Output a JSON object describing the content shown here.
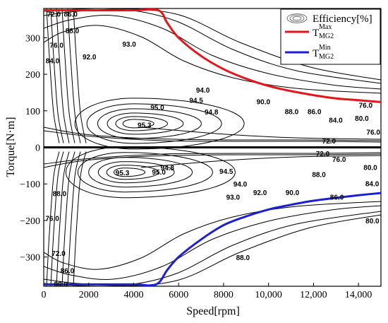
{
  "chart_data": {
    "type": "contour",
    "xlabel": "Speed[rpm]",
    "ylabel": "Torque[N·m]",
    "xlim": [
      0,
      15000
    ],
    "ylim": [
      -380,
      380
    ],
    "x_ticks": [
      0,
      2000,
      4000,
      6000,
      8000,
      10000,
      12000,
      14000
    ],
    "x_tick_labels": [
      "0",
      "2000",
      "4000",
      "6000",
      "8000",
      "10,000",
      "12,000",
      "14,000"
    ],
    "y_ticks": [
      300,
      200,
      100,
      0,
      -100,
      -200,
      -300
    ],
    "y_tick_labels": [
      "300",
      "200",
      "100",
      "0",
      "−100",
      "−200",
      "−300"
    ],
    "legend": {
      "position": "top-right",
      "entries": [
        {
          "label": "Efficiency[%]",
          "kind": "contour"
        },
        {
          "label": "T",
          "sup": "Max",
          "sub": "MG2",
          "color": "#e8141b"
        },
        {
          "label": "T",
          "sup": "Min",
          "sub": "MG2",
          "color": "#1c1fd6"
        }
      ]
    },
    "efficiency_levels": [
      72.0,
      76.0,
      80.0,
      84.0,
      86.0,
      88.0,
      90.0,
      92.0,
      93.0,
      94.0,
      94.5,
      94.8,
      95.0,
      95.3
    ],
    "contour_labels": [
      {
        "text": "72.0",
        "x": 450,
        "y": 365
      },
      {
        "text": "86.0",
        "x": 1200,
        "y": 365
      },
      {
        "text": "88.0",
        "x": 1270,
        "y": 319
      },
      {
        "text": "76.0",
        "x": 570,
        "y": 279
      },
      {
        "text": "84.0",
        "x": 390,
        "y": 237
      },
      {
        "text": "92.0",
        "x": 2030,
        "y": 248
      },
      {
        "text": "93.0",
        "x": 3800,
        "y": 282
      },
      {
        "text": "94.0",
        "x": 7080,
        "y": 157
      },
      {
        "text": "94.5",
        "x": 6780,
        "y": 129
      },
      {
        "text": "95.0",
        "x": 5050,
        "y": 109
      },
      {
        "text": "94.8",
        "x": 7460,
        "y": 97
      },
      {
        "text": "95.3",
        "x": 4480,
        "y": 61
      },
      {
        "text": "90.0",
        "x": 9770,
        "y": 125
      },
      {
        "text": "88.0",
        "x": 11030,
        "y": 98
      },
      {
        "text": "86.0",
        "x": 12040,
        "y": 98
      },
      {
        "text": "84.0",
        "x": 12990,
        "y": 74
      },
      {
        "text": "76.0",
        "x": 14320,
        "y": 115
      },
      {
        "text": "80.0",
        "x": 14150,
        "y": 79
      },
      {
        "text": "76.0",
        "x": 14660,
        "y": 42
      },
      {
        "text": "72.0",
        "x": 12690,
        "y": 17
      },
      {
        "text": "72.0",
        "x": 12410,
        "y": -17
      },
      {
        "text": "76.0",
        "x": 13140,
        "y": -33
      },
      {
        "text": "80.0",
        "x": 14530,
        "y": -55
      },
      {
        "text": "88.0",
        "x": 12240,
        "y": -74
      },
      {
        "text": "84.0",
        "x": 14610,
        "y": -100
      },
      {
        "text": "86.0",
        "x": 13040,
        "y": -136
      },
      {
        "text": "95.3",
        "x": 3500,
        "y": -70
      },
      {
        "text": "95.0",
        "x": 5120,
        "y": -68
      },
      {
        "text": "94.8",
        "x": 5500,
        "y": -56
      },
      {
        "text": "94.5",
        "x": 8120,
        "y": -66
      },
      {
        "text": "94.0",
        "x": 8740,
        "y": -101
      },
      {
        "text": "93.0",
        "x": 8420,
        "y": -136
      },
      {
        "text": "92.0",
        "x": 9620,
        "y": -124
      },
      {
        "text": "90.0",
        "x": 11060,
        "y": -124
      },
      {
        "text": "88.0",
        "x": 700,
        "y": -127
      },
      {
        "text": "76.0",
        "x": 380,
        "y": -194
      },
      {
        "text": "72.0",
        "x": 660,
        "y": -290
      },
      {
        "text": "86.0",
        "x": 1050,
        "y": -337
      },
      {
        "text": "80.0",
        "x": 760,
        "y": -374
      },
      {
        "text": "88.0",
        "x": 8860,
        "y": -302
      },
      {
        "text": "80.0",
        "x": 14620,
        "y": -201
      }
    ],
    "series": [
      {
        "name": "T_MG2^Max",
        "color": "#e8141b",
        "x": [
          0,
          2000,
          4000,
          5100,
          5500,
          6000,
          7000,
          8000,
          9000,
          10000,
          11000,
          12000,
          13000,
          14000,
          15000
        ],
        "y": [
          375,
          375,
          375,
          375,
          340,
          300,
          250,
          214,
          188,
          168,
          154,
          143,
          134,
          129,
          124
        ]
      },
      {
        "name": "T_MG2^Min",
        "color": "#1c1fd6",
        "x": [
          0,
          2000,
          4000,
          5000,
          5500,
          6000,
          7000,
          8000,
          9000,
          10000,
          11000,
          12000,
          13000,
          14000,
          15000
        ],
        "y": [
          -375,
          -375,
          -375,
          -375,
          -335,
          -300,
          -252,
          -213,
          -189,
          -170,
          -157,
          -146,
          -138,
          -131,
          -125
        ]
      }
    ]
  }
}
